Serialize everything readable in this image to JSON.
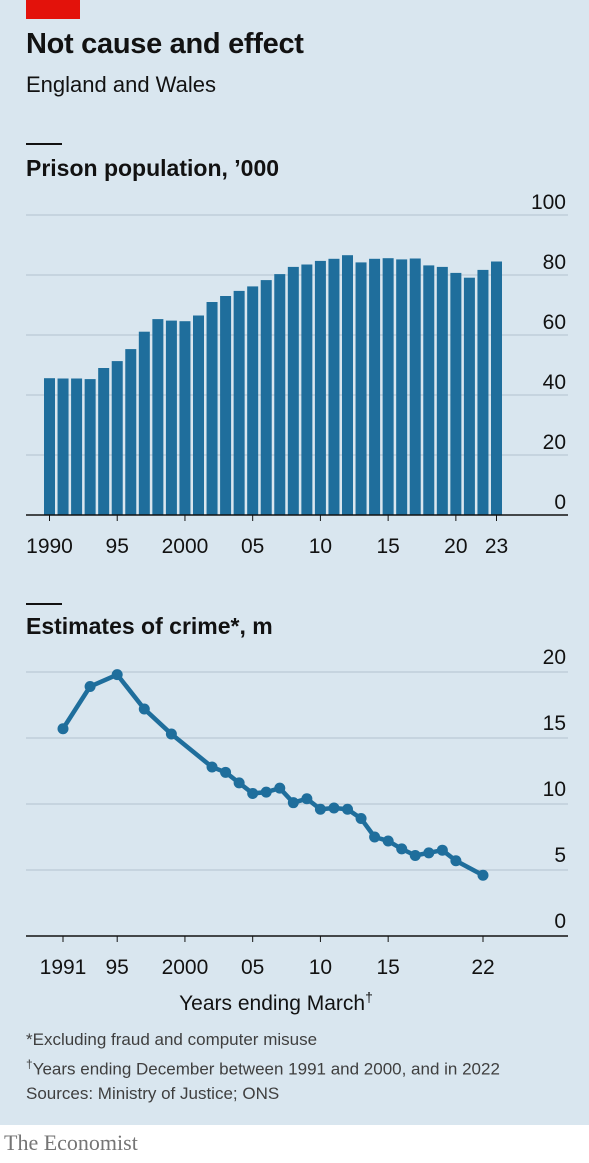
{
  "header": {
    "title": "Not cause and effect",
    "subtitle": "England and Wales"
  },
  "footer": {
    "note1": "*Excluding fraud and computer misuse",
    "note2_mark": "†",
    "note2": "Years ending December between 1991 and 2000, and in 2022",
    "sources": "Sources: Ministry of Justice; ONS",
    "brand": "The Economist"
  },
  "colors": {
    "series": "#1f6e9c",
    "accent": "#e3120b",
    "grid": "#b3c3cf"
  },
  "chart_data": [
    {
      "type": "bar",
      "title": "Prison population, ’000",
      "x": [
        1990,
        1991,
        1992,
        1993,
        1994,
        1995,
        1996,
        1997,
        1998,
        1999,
        2000,
        2001,
        2002,
        2003,
        2004,
        2005,
        2006,
        2007,
        2008,
        2009,
        2010,
        2011,
        2012,
        2013,
        2014,
        2015,
        2016,
        2017,
        2018,
        2019,
        2020,
        2021,
        2022,
        2023
      ],
      "values": [
        45.6,
        45.5,
        45.5,
        45.3,
        49,
        51.3,
        55.3,
        61.1,
        65.3,
        64.8,
        64.6,
        66.5,
        71,
        73,
        74.7,
        76.2,
        78.3,
        80.3,
        82.7,
        83.5,
        84.7,
        85.4,
        86.6,
        84.2,
        85.4,
        85.6,
        85.2,
        85.5,
        83.2,
        82.7,
        80.7,
        79.1,
        81.7,
        84.5
      ],
      "ylim": [
        0,
        100
      ],
      "yticks": [
        "0",
        "20",
        "40",
        "60",
        "80",
        "100"
      ],
      "xtick_labels": [
        {
          "year": 1990,
          "label": "1990"
        },
        {
          "year": 1995,
          "label": "95"
        },
        {
          "year": 2000,
          "label": "2000"
        },
        {
          "year": 2005,
          "label": "05"
        },
        {
          "year": 2010,
          "label": "10"
        },
        {
          "year": 2015,
          "label": "15"
        },
        {
          "year": 2020,
          "label": "20"
        },
        {
          "year": 2023,
          "label": "23"
        }
      ],
      "grid": true
    },
    {
      "type": "line",
      "title": "Estimates of crime*, m",
      "x": [
        1991,
        1993,
        1995,
        1997,
        1999,
        2002,
        2003,
        2004,
        2005,
        2006,
        2007,
        2008,
        2009,
        2010,
        2011,
        2012,
        2013,
        2014,
        2015,
        2016,
        2017,
        2018,
        2019,
        2020,
        2022
      ],
      "values": [
        15.7,
        18.9,
        19.8,
        17.2,
        15.3,
        12.8,
        12.4,
        11.6,
        10.8,
        10.9,
        11.2,
        10.1,
        10.4,
        9.6,
        9.7,
        9.6,
        8.9,
        7.5,
        7.2,
        6.6,
        6.1,
        6.3,
        6.5,
        5.7,
        4.6
      ],
      "ylim": [
        0,
        20
      ],
      "yticks": [
        "0",
        "5",
        "10",
        "15",
        "20"
      ],
      "xtick_labels": [
        {
          "year": 1991,
          "label": "1991"
        },
        {
          "year": 1995,
          "label": "95"
        },
        {
          "year": 2000,
          "label": "2000"
        },
        {
          "year": 2005,
          "label": "05"
        },
        {
          "year": 2010,
          "label": "10"
        },
        {
          "year": 2015,
          "label": "15"
        },
        {
          "year": 2022,
          "label": "22"
        }
      ],
      "xlabel": "Years ending March",
      "xlabel_mark": "†",
      "grid": true
    }
  ]
}
